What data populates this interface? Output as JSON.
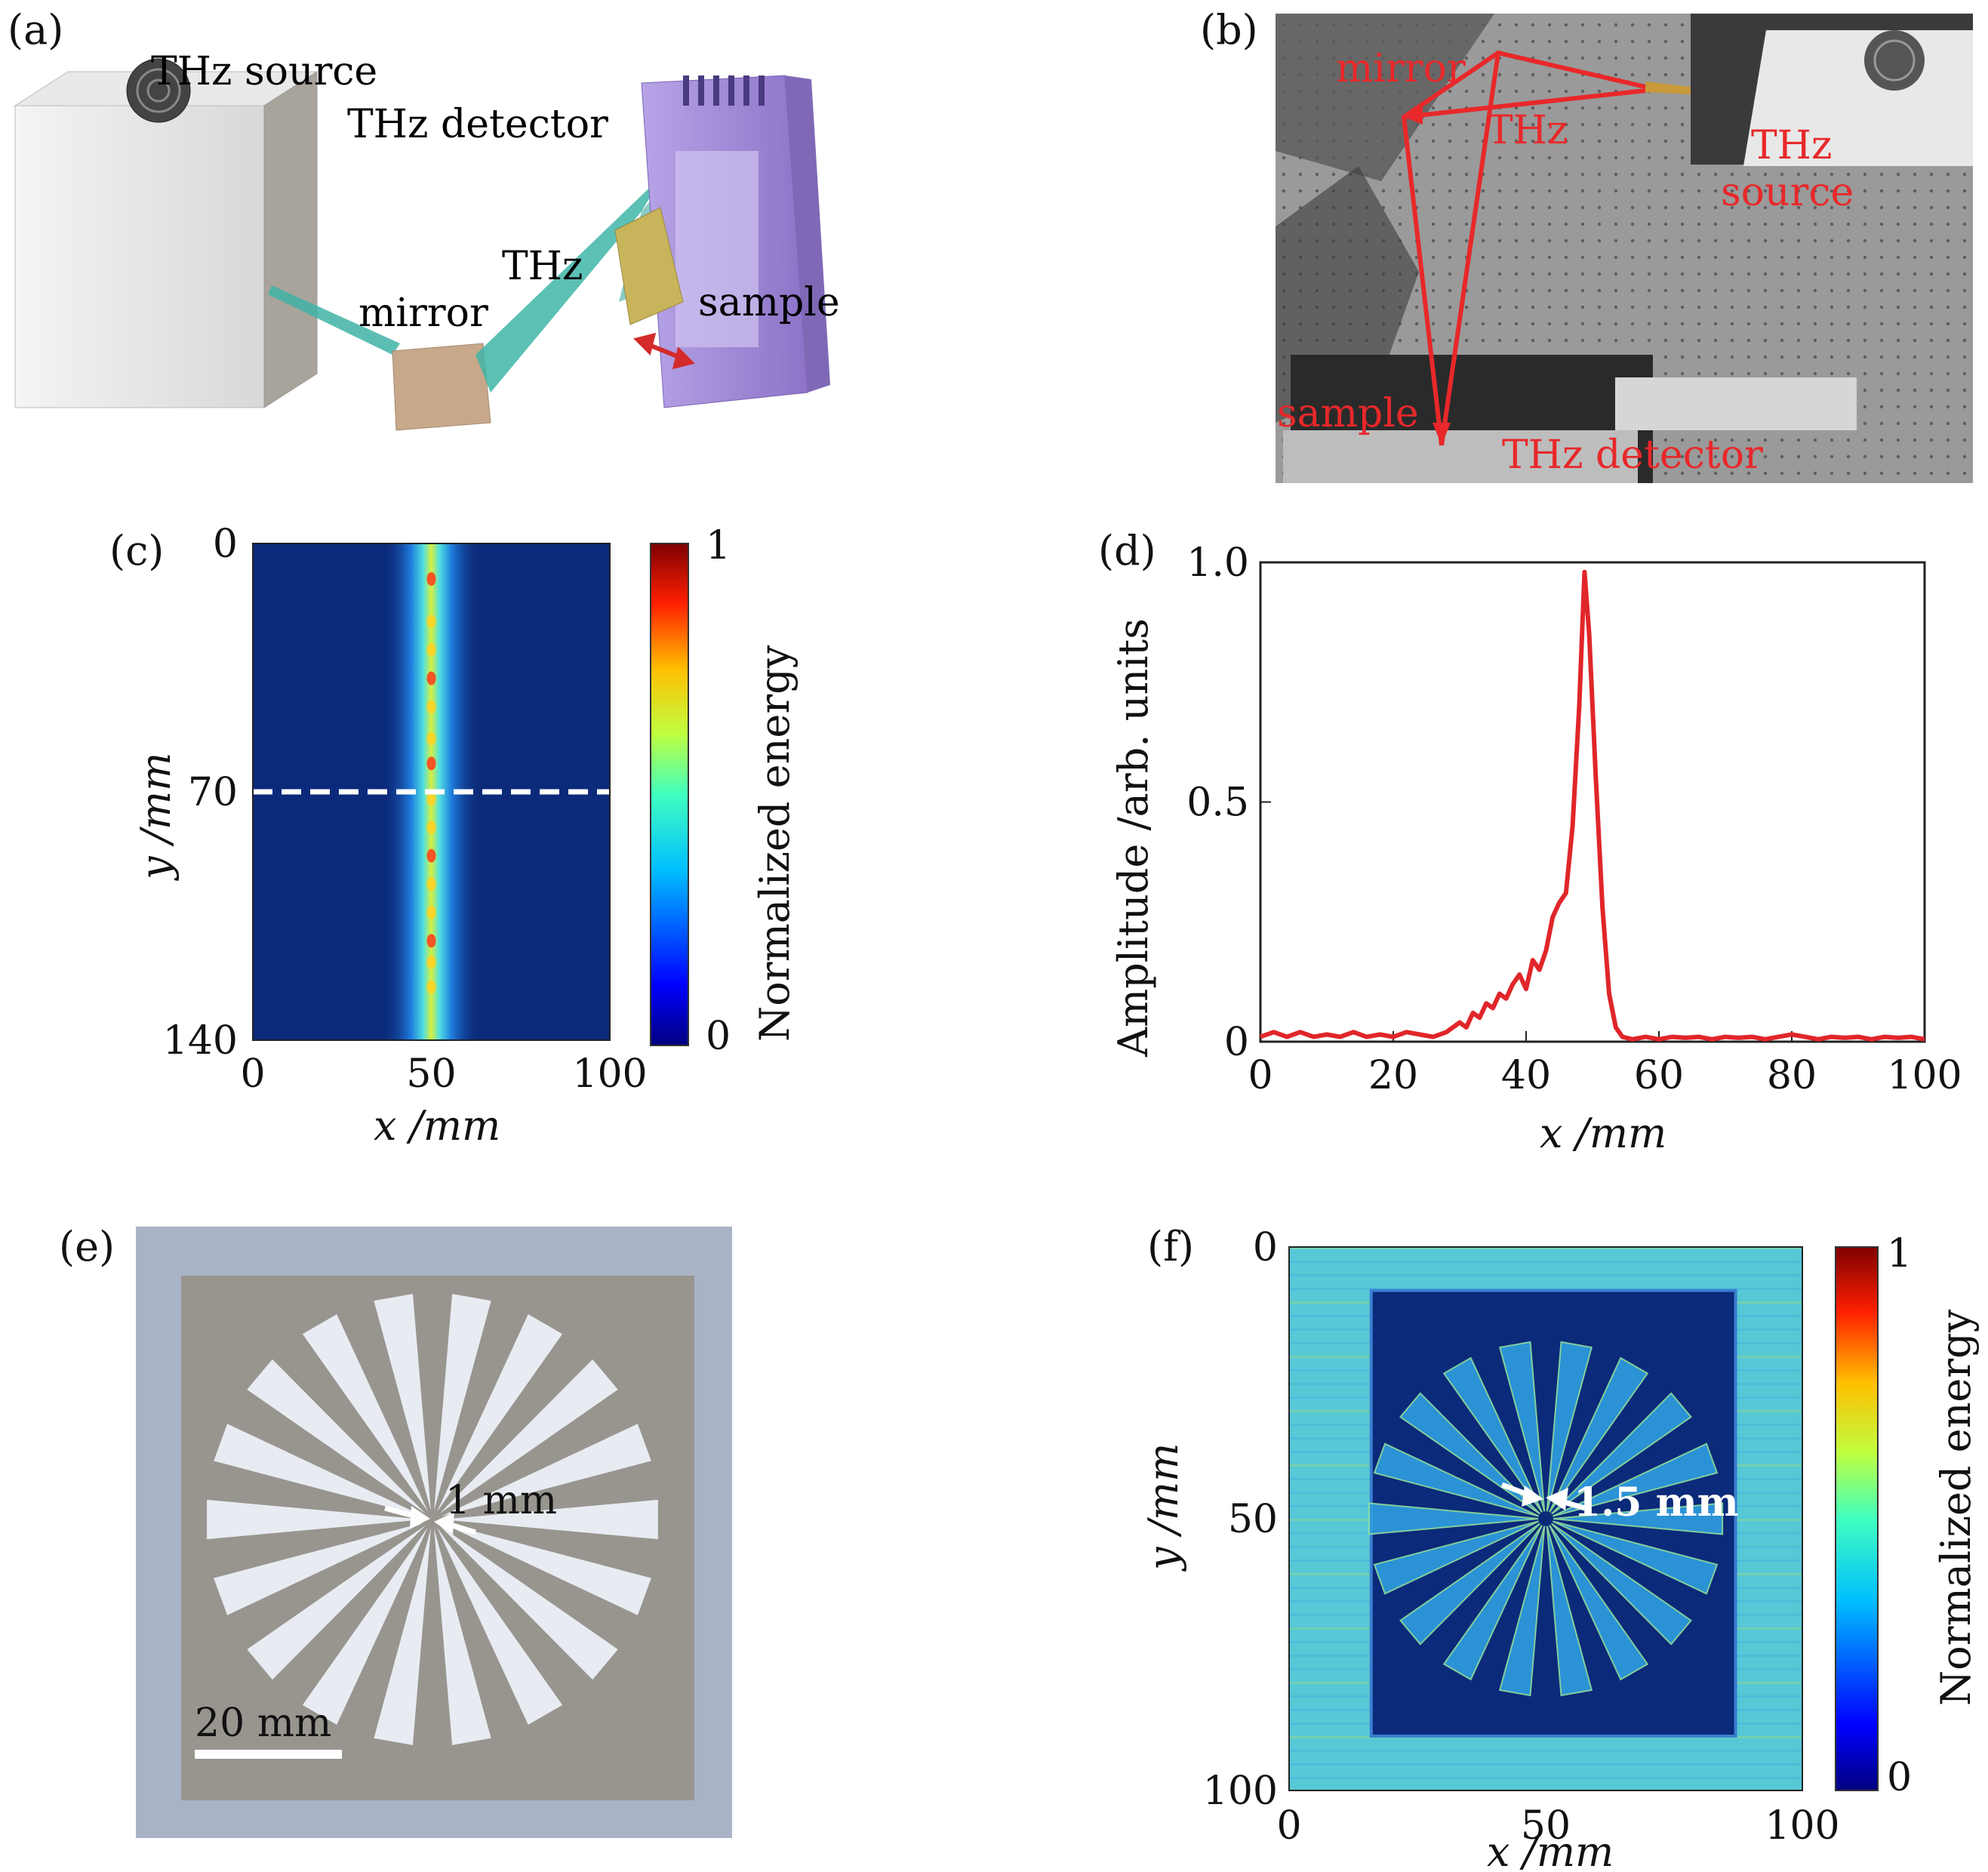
{
  "figure": {
    "panel_labels": [
      "(a)",
      "(b)",
      "(c)",
      "(d)",
      "(e)",
      "(f)"
    ]
  },
  "panel_a": {
    "labels": {
      "source": "THz source",
      "detector": "THz detector",
      "thz": "THz",
      "mirror": "mirror",
      "sample": "sample"
    },
    "colors": {
      "beam": "#3fb5a8",
      "detector_body": "#a48ed8",
      "mirror": "#c9a98a",
      "source": "#e6e6e6",
      "arrow": "#d42a2a"
    }
  },
  "panel_b": {
    "labels": {
      "mirror": "mirror",
      "thz": "THz",
      "source_line1": "THz",
      "source_line2": "source",
      "sample": "sample",
      "detector": "THz detector"
    },
    "colors": {
      "annotation": "#e8282a",
      "table": "#8f8f8f"
    }
  },
  "chart_data": [
    {
      "id": "c",
      "type": "heatmap",
      "xlabel": "x /mm",
      "ylabel": "y /mm",
      "xlim": [
        0,
        100
      ],
      "ylim": [
        140,
        0
      ],
      "x_ticks": [
        "0",
        "50",
        "100"
      ],
      "y_ticks": [
        "0",
        "70",
        "140"
      ],
      "colorbar_label": "Normalized energy",
      "colorbar_ticks": [
        "0",
        "1"
      ],
      "colormap": "jet",
      "description_data": {
        "line_x_center": 50,
        "line_fwhm_mm": 4,
        "dashed_line_y": 70
      }
    },
    {
      "id": "d",
      "type": "line",
      "xlabel": "x /mm",
      "ylabel": "Amplitude /arb. units",
      "xlim": [
        0,
        100
      ],
      "ylim": [
        0,
        1.0
      ],
      "x_ticks": [
        "0",
        "20",
        "40",
        "60",
        "80",
        "100"
      ],
      "y_ticks": [
        "0",
        "0.5",
        "1.0"
      ],
      "series": [
        {
          "color": "#e0262a",
          "x": [
            0,
            2,
            4,
            6,
            8,
            10,
            12,
            14,
            16,
            18,
            20,
            22,
            24,
            26,
            28,
            30,
            31,
            32,
            33,
            34,
            35,
            36,
            37,
            38,
            39,
            40,
            41,
            42,
            43,
            44,
            45,
            46,
            47,
            48,
            48.8,
            49.5,
            50.5,
            51.5,
            52.5,
            53.5,
            54.5,
            56,
            58,
            60,
            62,
            64,
            66,
            68,
            70,
            72,
            74,
            76,
            78,
            80,
            82,
            84,
            86,
            88,
            90,
            92,
            94,
            96,
            98,
            100
          ],
          "y": [
            0.01,
            0.02,
            0.01,
            0.02,
            0.01,
            0.015,
            0.01,
            0.02,
            0.01,
            0.015,
            0.01,
            0.02,
            0.015,
            0.01,
            0.02,
            0.04,
            0.03,
            0.06,
            0.05,
            0.08,
            0.07,
            0.1,
            0.09,
            0.12,
            0.14,
            0.11,
            0.17,
            0.15,
            0.19,
            0.26,
            0.29,
            0.31,
            0.45,
            0.7,
            0.98,
            0.85,
            0.55,
            0.28,
            0.1,
            0.03,
            0.01,
            0.005,
            0.01,
            0.005,
            0.01,
            0.008,
            0.01,
            0.005,
            0.01,
            0.008,
            0.01,
            0.005,
            0.01,
            0.015,
            0.01,
            0.005,
            0.01,
            0.008,
            0.01,
            0.005,
            0.01,
            0.008,
            0.01,
            0.005
          ]
        }
      ]
    },
    {
      "id": "f",
      "type": "heatmap",
      "xlabel": "x /mm",
      "ylabel": "y /mm",
      "xlim": [
        0,
        100
      ],
      "ylim": [
        100,
        0
      ],
      "x_ticks": [
        "0",
        "50",
        "100"
      ],
      "y_ticks": [
        "0",
        "50",
        "100"
      ],
      "colorbar_label": "Normalized energy",
      "colorbar_ticks": [
        "0",
        "1"
      ],
      "colormap": "jet",
      "annotation": "1.5 mm",
      "description_data": {
        "plate_x_range": [
          16,
          87
        ],
        "plate_y_range": [
          8,
          90
        ],
        "star_center": [
          50,
          50
        ],
        "star_spokes": 18
      }
    }
  ],
  "panel_e": {
    "labels": {
      "center_gap": "1 mm",
      "scale_bar": "20 mm"
    },
    "star_spokes": 18,
    "colors": {
      "plate": "#8d8a84",
      "background": "#a9b3c6",
      "slot": "#e8ecf2"
    }
  }
}
